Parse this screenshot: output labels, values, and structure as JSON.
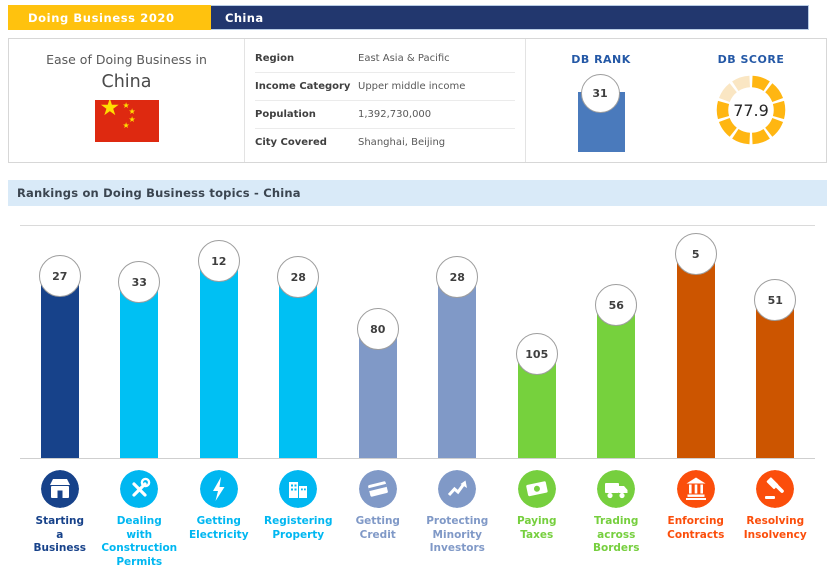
{
  "header": {
    "product": "Doing Business 2020",
    "country": "China",
    "brand_yellow": "#FFC20E",
    "brand_navy": "#22376E"
  },
  "summary": {
    "title_prefix": "Ease of Doing Business in",
    "country": "China",
    "flag": "china-flag",
    "facts": [
      {
        "label": "Region",
        "value": "East Asia & Pacific"
      },
      {
        "label": "Income Category",
        "value": "Upper middle income"
      },
      {
        "label": "Population",
        "value": "1,392,730,000"
      },
      {
        "label": "City Covered",
        "value": "Shanghai, Beijing"
      }
    ],
    "db_rank": {
      "label": "DB RANK",
      "value": "31",
      "bar_color": "#4A7ABC"
    },
    "db_score": {
      "label": "DB SCORE",
      "value": "77.9",
      "segments": 10,
      "filled_segments": 8,
      "filled_color": "#FFB612",
      "empty_color": "#FAE6C3"
    }
  },
  "section": {
    "title": "Rankings on Doing Business topics - China"
  },
  "chart_data": {
    "type": "bar",
    "title": "Rankings on Doing Business topics - China",
    "categories": [
      "Starting a Business",
      "Dealing with Construction Permits",
      "Getting Electricity",
      "Registering Property",
      "Getting Credit",
      "Protecting Minority Investors",
      "Paying Taxes",
      "Trading across Borders",
      "Enforcing Contracts",
      "Resolving Insolvency"
    ],
    "tick_labels": [
      "Starting\na\nBusiness",
      "Dealing\nwith\nConstruction\nPermits",
      "Getting\nElectricity",
      "Registering\nProperty",
      "Getting\nCredit",
      "Protecting\nMinority\nInvestors",
      "Paying\nTaxes",
      "Trading\nacross\nBorders",
      "Enforcing\nContracts",
      "Resolving\nInsolvency"
    ],
    "values": [
      27,
      33,
      12,
      28,
      80,
      28,
      105,
      56,
      5,
      51
    ],
    "value_meaning": "rank (lower is better, taller bar)",
    "ylim": [
      209,
      0
    ],
    "bar_colors": [
      "#17428A",
      "#00C0F3",
      "#00C0F3",
      "#00C0F3",
      "#8099C7",
      "#8099C7",
      "#76D13D",
      "#76D13D",
      "#CC5500",
      "#CC5500"
    ],
    "icon_colors": [
      "#17428A",
      "#00B7F1",
      "#00B7F1",
      "#00B7F1",
      "#8099C7",
      "#8099C7",
      "#76CF3E",
      "#76CF3E",
      "#FB4E0B",
      "#FB4E0B"
    ],
    "icons": [
      "shop-icon",
      "tools-icon",
      "bolt-icon",
      "buildings-icon",
      "credit-card-icon",
      "trend-icon",
      "cash-icon",
      "truck-icon",
      "bank-icon",
      "gavel-icon"
    ],
    "legend": "none",
    "grid": false
  }
}
